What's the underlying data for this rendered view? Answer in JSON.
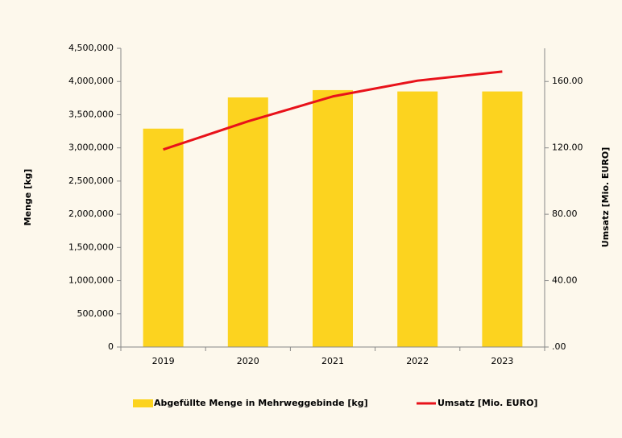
{
  "chart_data": {
    "type": "bar",
    "categories": [
      "2019",
      "2020",
      "2021",
      "2022",
      "2023"
    ],
    "series": [
      {
        "name": "Abgefüllte Menge in Mehrweggebinde [kg]",
        "color": "#fcd31f",
        "type": "bar",
        "values": [
          3290000,
          3760000,
          3870000,
          3850000,
          3850000
        ]
      },
      {
        "name": "Umsatz [Mio. EURO]",
        "color": "#e8121a",
        "type": "line",
        "axis": "y2",
        "values": [
          119,
          136,
          151,
          160.5,
          166
        ]
      }
    ],
    "ylabel": "Menge [kg]",
    "y2label": "Umsatz [Mio. EURO]",
    "ylim": [
      0,
      4500000
    ],
    "yticks": [
      0,
      {
        "value": 500000,
        "label": "500,000"
      },
      {
        "value": 1000000,
        "label": "1,000,000"
      },
      {
        "value": 1500000,
        "label": "1,500,000"
      },
      {
        "value": 2000000,
        "label": "2,000,000"
      },
      {
        "value": 2500000,
        "label": "2,500,000"
      },
      {
        "value": 3000000,
        "label": "3,000,000"
      },
      {
        "value": 3500000,
        "label": "3,500,000"
      },
      {
        "value": 4000000,
        "label": "4,000,000"
      },
      {
        "value": 4500000,
        "label": "4,500,000"
      }
    ],
    "y2lim": [
      0,
      180
    ],
    "y2ticks": [
      {
        "value": 0,
        "label": ".00"
      },
      {
        "value": 40,
        "label": "40.00"
      },
      {
        "value": 80,
        "label": "80.00"
      },
      {
        "value": 120,
        "label": "120.00"
      },
      {
        "value": 160,
        "label": "160.00"
      }
    ],
    "grid": false,
    "legend": "bottom"
  }
}
